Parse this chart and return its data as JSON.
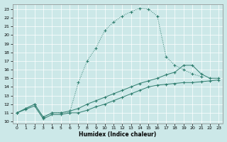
{
  "xlabel": "Humidex (Indice chaleur)",
  "bg_color": "#cce8e8",
  "grid_color": "#ffffff",
  "line_color": "#2e7d6e",
  "xlim": [
    -0.5,
    23.5
  ],
  "ylim": [
    9.8,
    23.6
  ],
  "xticks": [
    0,
    1,
    2,
    3,
    4,
    5,
    6,
    7,
    8,
    9,
    10,
    11,
    12,
    13,
    14,
    15,
    16,
    17,
    18,
    19,
    20,
    21,
    22,
    23
  ],
  "yticks": [
    10,
    11,
    12,
    13,
    14,
    15,
    16,
    17,
    18,
    19,
    20,
    21,
    22,
    23
  ],
  "main_x": [
    0,
    1,
    2,
    3,
    4,
    5,
    6,
    7,
    8,
    9,
    10,
    11,
    12,
    13,
    14,
    15,
    16,
    17,
    18,
    19,
    20,
    21
  ],
  "main_y": [
    11.0,
    11.5,
    12.0,
    10.5,
    11.0,
    11.0,
    11.0,
    14.5,
    17.0,
    18.5,
    20.5,
    21.5,
    22.2,
    22.7,
    23.1,
    23.0,
    22.2,
    17.5,
    16.5,
    16.0,
    15.5,
    15.2
  ],
  "main_dotted": true,
  "upper_x": [
    0,
    1,
    2,
    3,
    4,
    5,
    6,
    7,
    8,
    9,
    10,
    11,
    12,
    13,
    14,
    15,
    16,
    17,
    18,
    19,
    20,
    21,
    22,
    23
  ],
  "upper_y": [
    11.0,
    11.5,
    12.0,
    10.5,
    11.0,
    11.0,
    11.2,
    11.5,
    12.0,
    12.4,
    12.8,
    13.2,
    13.6,
    14.0,
    14.4,
    14.7,
    15.0,
    15.4,
    15.7,
    16.5,
    16.5,
    15.5,
    15.0,
    15.0
  ],
  "lower_x": [
    0,
    1,
    2,
    3,
    4,
    5,
    6,
    7,
    8,
    9,
    10,
    11,
    12,
    13,
    14,
    15,
    16,
    17,
    18,
    19,
    20,
    21,
    22,
    23
  ],
  "lower_y": [
    11.0,
    11.4,
    11.8,
    10.3,
    10.8,
    10.8,
    11.0,
    11.0,
    11.3,
    11.7,
    12.0,
    12.4,
    12.8,
    13.2,
    13.6,
    14.0,
    14.2,
    14.3,
    14.4,
    14.5,
    14.5,
    14.6,
    14.7,
    14.8
  ]
}
